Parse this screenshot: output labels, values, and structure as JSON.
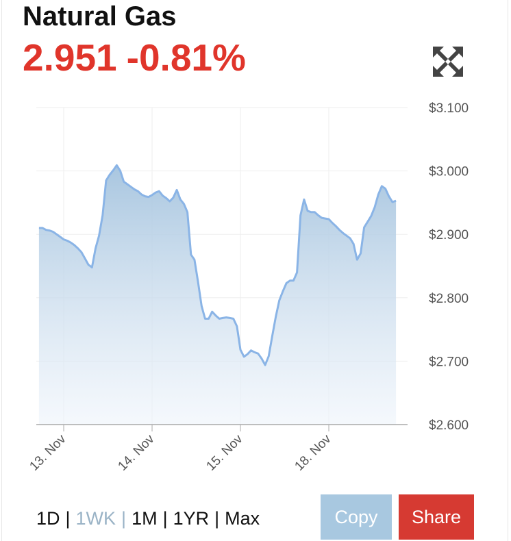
{
  "header": {
    "title": "Natural Gas",
    "price": "2.951",
    "change": "-0.81%"
  },
  "chart_data": {
    "type": "area",
    "categories": [
      null,
      null,
      null,
      null,
      null,
      null,
      null,
      "13. Nov",
      null,
      null,
      null,
      null,
      null,
      null,
      null,
      null,
      null,
      null,
      null,
      null,
      null,
      null,
      null,
      null,
      null,
      null,
      null,
      null,
      null,
      null,
      null,
      null,
      "14. Nov",
      null,
      null,
      null,
      null,
      null,
      null,
      null,
      null,
      null,
      null,
      null,
      null,
      null,
      null,
      null,
      null,
      null,
      null,
      null,
      null,
      null,
      null,
      null,
      null,
      "15. Nov",
      null,
      null,
      null,
      null,
      null,
      null,
      null,
      null,
      null,
      null,
      null,
      null,
      null,
      null,
      null,
      null,
      null,
      null,
      null,
      null,
      null,
      null,
      null,
      null,
      "18. Nov",
      null,
      null,
      null,
      null,
      null,
      null,
      null,
      null,
      null,
      null,
      null,
      null,
      null,
      null,
      null,
      null,
      null,
      null,
      null
    ],
    "values": [
      2.91,
      2.91,
      2.907,
      2.906,
      2.904,
      2.9,
      2.896,
      2.892,
      2.89,
      2.887,
      2.883,
      2.878,
      2.872,
      2.862,
      2.852,
      2.848,
      2.878,
      2.898,
      2.93,
      2.985,
      2.994,
      3.001,
      3.009,
      3.0,
      2.983,
      2.979,
      2.975,
      2.971,
      2.968,
      2.963,
      2.96,
      2.959,
      2.962,
      2.966,
      2.968,
      2.961,
      2.957,
      2.952,
      2.958,
      2.97,
      2.955,
      2.948,
      2.935,
      2.868,
      2.86,
      2.825,
      2.787,
      2.767,
      2.767,
      2.778,
      2.772,
      2.767,
      2.768,
      2.769,
      2.768,
      2.767,
      2.755,
      2.718,
      2.707,
      2.711,
      2.717,
      2.714,
      2.712,
      2.704,
      2.694,
      2.708,
      2.74,
      2.77,
      2.796,
      2.81,
      2.823,
      2.827,
      2.827,
      2.84,
      2.93,
      2.955,
      2.937,
      2.935,
      2.935,
      2.93,
      2.926,
      2.925,
      2.924,
      2.918,
      2.913,
      2.907,
      2.902,
      2.898,
      2.894,
      2.885,
      2.86,
      2.87,
      2.911,
      2.92,
      2.929,
      2.943,
      2.963,
      2.976,
      2.972,
      2.96,
      2.951,
      2.953
    ],
    "color": "#8ab4e6",
    "ylim": [
      2.6,
      3.1
    ],
    "yticks": [
      {
        "value": 2.6,
        "label": "$2.600"
      },
      {
        "value": 2.7,
        "label": "$2.700"
      },
      {
        "value": 2.8,
        "label": "$2.800"
      },
      {
        "value": 2.9,
        "label": "$2.900"
      },
      {
        "value": 3.0,
        "label": "$3.000"
      },
      {
        "value": 3.1,
        "label": "$3.100"
      }
    ],
    "grid": true
  },
  "controls": {
    "ranges": [
      "1D",
      "1WK",
      "1M",
      "1YR",
      "Max"
    ],
    "active": "1WK",
    "separator": "|",
    "copy": "Copy",
    "share": "Share"
  }
}
